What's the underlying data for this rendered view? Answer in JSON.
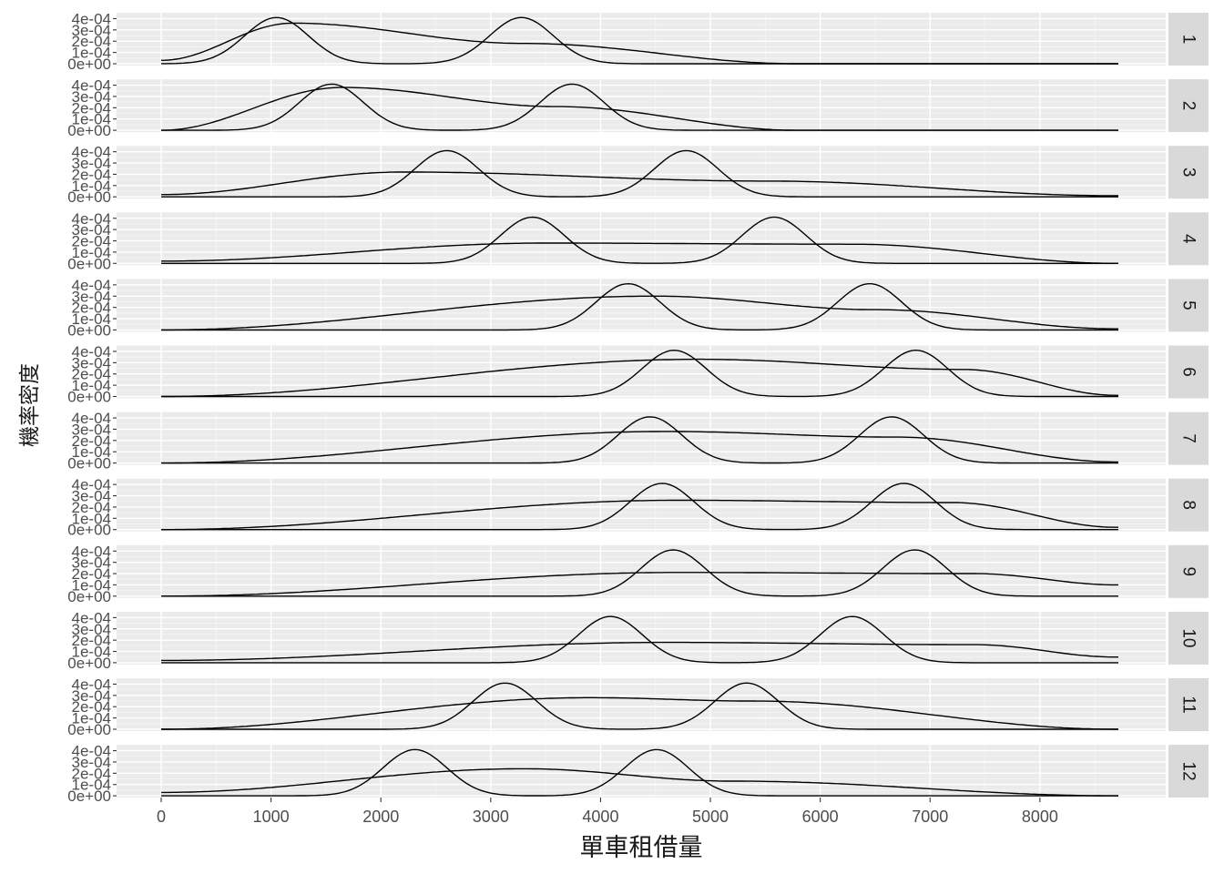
{
  "chart_data": {
    "type": "density",
    "facet_by": "month",
    "facets": [
      "1",
      "2",
      "3",
      "4",
      "5",
      "6",
      "7",
      "8",
      "9",
      "10",
      "11",
      "12"
    ],
    "xlabel": "單車租借量",
    "ylabel": "機率密度",
    "xlim": [
      0,
      8714
    ],
    "x_ticks": [
      0,
      1000,
      2000,
      3000,
      4000,
      5000,
      6000,
      7000,
      8000
    ],
    "x_tick_labels": [
      "0",
      "1000",
      "2000",
      "3000",
      "4000",
      "5000",
      "6000",
      "7000",
      "8000"
    ],
    "ylim": [
      0,
      0.00042
    ],
    "y_ticks": [
      0,
      0.0001,
      0.0002,
      0.0003,
      0.0004
    ],
    "y_tick_labels": [
      "0e+00",
      "1e-04",
      "2e-04",
      "3e-04",
      "4e-04"
    ],
    "grid": true,
    "line_color": "#000000",
    "panel_background": "#ebebeb",
    "strip_background": "#d9d9d9",
    "panels": [
      {
        "facet": "1",
        "bimodal": {
          "peaks": [
            1050,
            3280
          ],
          "peak_density": 0.00041
        },
        "broad": [
          {
            "x": 0,
            "y": 3e-05
          },
          {
            "x": 1200,
            "y": 0.00036
          },
          {
            "x": 3300,
            "y": 0.00018
          },
          {
            "x": 5800,
            "y": 0.0
          }
        ]
      },
      {
        "facet": "2",
        "bimodal": {
          "peaks": [
            1550,
            3740
          ],
          "peak_density": 0.00041
        },
        "broad": [
          {
            "x": 0,
            "y": 0.0
          },
          {
            "x": 1650,
            "y": 0.00038
          },
          {
            "x": 3600,
            "y": 0.00021
          },
          {
            "x": 5800,
            "y": 0.0
          }
        ]
      },
      {
        "facet": "3",
        "bimodal": {
          "peaks": [
            2600,
            4780
          ],
          "peak_density": 0.00041
        },
        "broad": [
          {
            "x": 0,
            "y": 2e-05
          },
          {
            "x": 2200,
            "y": 0.00022
          },
          {
            "x": 5500,
            "y": 0.00014
          },
          {
            "x": 8700,
            "y": 1e-05
          }
        ]
      },
      {
        "facet": "4",
        "bimodal": {
          "peaks": [
            3380,
            5580
          ],
          "peak_density": 0.00041
        },
        "broad": [
          {
            "x": 0,
            "y": 2e-05
          },
          {
            "x": 3500,
            "y": 0.00018
          },
          {
            "x": 6300,
            "y": 0.00017
          },
          {
            "x": 8700,
            "y": 0.0
          }
        ]
      },
      {
        "facet": "5",
        "bimodal": {
          "peaks": [
            4250,
            6450
          ],
          "peak_density": 0.00041
        },
        "broad": [
          {
            "x": 0,
            "y": 0.0
          },
          {
            "x": 4500,
            "y": 0.0003
          },
          {
            "x": 6500,
            "y": 0.00018
          },
          {
            "x": 8700,
            "y": 1e-05
          }
        ]
      },
      {
        "facet": "6",
        "bimodal": {
          "peaks": [
            4670,
            6870
          ],
          "peak_density": 0.00041
        },
        "broad": [
          {
            "x": 0,
            "y": 0.0
          },
          {
            "x": 4900,
            "y": 0.00033
          },
          {
            "x": 7300,
            "y": 0.00024
          },
          {
            "x": 8700,
            "y": 1e-05
          }
        ]
      },
      {
        "facet": "7",
        "bimodal": {
          "peaks": [
            4450,
            6650
          ],
          "peak_density": 0.00041
        },
        "broad": [
          {
            "x": 0,
            "y": 0.0
          },
          {
            "x": 4600,
            "y": 0.00028
          },
          {
            "x": 6700,
            "y": 0.00023
          },
          {
            "x": 8700,
            "y": 1e-05
          }
        ]
      },
      {
        "facet": "8",
        "bimodal": {
          "peaks": [
            4560,
            6760
          ],
          "peak_density": 0.00041
        },
        "broad": [
          {
            "x": 0,
            "y": 0.0
          },
          {
            "x": 4700,
            "y": 0.00026
          },
          {
            "x": 7200,
            "y": 0.00024
          },
          {
            "x": 8700,
            "y": 2e-05
          }
        ]
      },
      {
        "facet": "9",
        "bimodal": {
          "peaks": [
            4660,
            6860
          ],
          "peak_density": 0.00041
        },
        "broad": [
          {
            "x": 0,
            "y": 0.0
          },
          {
            "x": 4700,
            "y": 0.00021
          },
          {
            "x": 7400,
            "y": 0.0002
          },
          {
            "x": 8700,
            "y": 0.0001
          }
        ]
      },
      {
        "facet": "10",
        "bimodal": {
          "peaks": [
            4090,
            6290
          ],
          "peak_density": 0.00041
        },
        "broad": [
          {
            "x": 0,
            "y": 2e-05
          },
          {
            "x": 4600,
            "y": 0.00018
          },
          {
            "x": 7400,
            "y": 0.00016
          },
          {
            "x": 8700,
            "y": 5e-05
          }
        ]
      },
      {
        "facet": "11",
        "bimodal": {
          "peaks": [
            3130,
            5330
          ],
          "peak_density": 0.00041
        },
        "broad": [
          {
            "x": 0,
            "y": 0.0
          },
          {
            "x": 3900,
            "y": 0.00028
          },
          {
            "x": 5400,
            "y": 0.00025
          },
          {
            "x": 8700,
            "y": 0.0
          }
        ]
      },
      {
        "facet": "12",
        "bimodal": {
          "peaks": [
            2310,
            4510
          ],
          "peak_density": 0.00041
        },
        "broad": [
          {
            "x": 0,
            "y": 3e-05
          },
          {
            "x": 3300,
            "y": 0.00024
          },
          {
            "x": 5200,
            "y": 0.00013
          },
          {
            "x": 8700,
            "y": 0.0
          }
        ]
      }
    ]
  }
}
